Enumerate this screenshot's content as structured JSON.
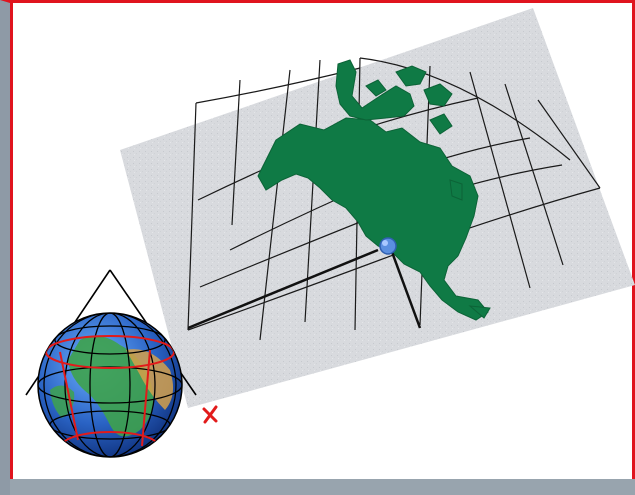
{
  "diagram": {
    "type": "conic-map-projection",
    "projected_region": "North America",
    "colors": {
      "frame_border": "#e0141e",
      "map_paper": "#d8dade",
      "landmass": "#0f7a45",
      "graticule": "#1a1a1a",
      "projection_lines": "#111111",
      "tangent_marker": "#e0141e",
      "globe_water": "#2a63c4",
      "globe_land": "#3ea24c",
      "globe_red_line": "#e21b1b",
      "center_point": "#5b8fe0"
    },
    "icons": [
      "globe-icon",
      "cone-icon",
      "tangent-point-marker-icon",
      "center-point-icon"
    ]
  }
}
